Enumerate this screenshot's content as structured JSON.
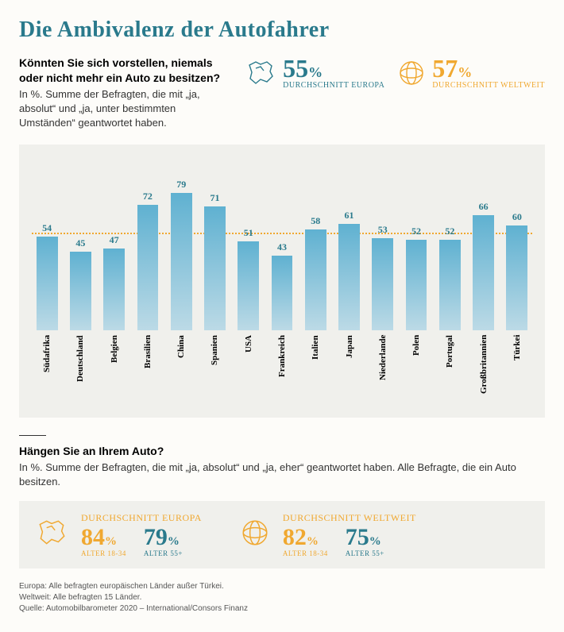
{
  "colors": {
    "teal": "#2a7a8c",
    "orange": "#f0a830",
    "avg_line": "#f0a830",
    "bar_top": "#5fb1d1",
    "bar_bottom": "#bcdae6",
    "text": "#1c1c1c"
  },
  "title": "Die Ambivalenz der Autofahrer",
  "q1": {
    "question": "Könnten Sie sich vorstellen, niemals oder nicht mehr ein Auto zu besitzen?",
    "subtext": "In %. Summe der Befragten, die mit „ja, absolut“ und „ja, unter bestimmten Umständen“ geantwortet haben.",
    "europe": {
      "value": "55",
      "pct": "%",
      "label": "DURCHSCHNITT EUROPA"
    },
    "world": {
      "value": "57",
      "pct": "%",
      "label": "DURCHSCHNITT WELTWEIT"
    }
  },
  "chart": {
    "ymax": 100,
    "avg": 55,
    "bars": [
      {
        "label": "Südafrika",
        "value": 54
      },
      {
        "label": "Deutschland",
        "value": 45
      },
      {
        "label": "Belgien",
        "value": 47
      },
      {
        "label": "Brasilien",
        "value": 72
      },
      {
        "label": "China",
        "value": 79
      },
      {
        "label": "Spanien",
        "value": 71
      },
      {
        "label": "USA",
        "value": 51
      },
      {
        "label": "Frankreich",
        "value": 43
      },
      {
        "label": "Italien",
        "value": 58
      },
      {
        "label": "Japan",
        "value": 61
      },
      {
        "label": "Niederlande",
        "value": 53
      },
      {
        "label": "Polen",
        "value": 52
      },
      {
        "label": "Portugal",
        "value": 52
      },
      {
        "label": "Großbritannien",
        "value": 66
      },
      {
        "label": "Türkei",
        "value": 60
      }
    ]
  },
  "q2": {
    "question": "Hängen Sie an Ihrem Auto?",
    "subtext": "In %. Summe der Befragten, die mit „ja, absolut“ und „ja, eher“ geantwortet haben. Alle Befragte, die ein Auto besitzen.",
    "europe": {
      "title": "DURCHSCHNITT EUROPA",
      "young": {
        "value": "84",
        "age": "ALTER 18-34"
      },
      "old": {
        "value": "79",
        "age": "ALTER 55+"
      }
    },
    "world": {
      "title": "DURCHSCHNITT WELTWEIT",
      "young": {
        "value": "82",
        "age": "ALTER 18-34"
      },
      "old": {
        "value": "75",
        "age": "ALTER 55+"
      }
    }
  },
  "footnotes": {
    "l1": "Europa: Alle befragten europäischen Länder außer Türkei.",
    "l2": "Weltweit: Alle befragten 15 Länder.",
    "l3": "Quelle: Automobilbarometer 2020 – International/Consors Finanz"
  }
}
